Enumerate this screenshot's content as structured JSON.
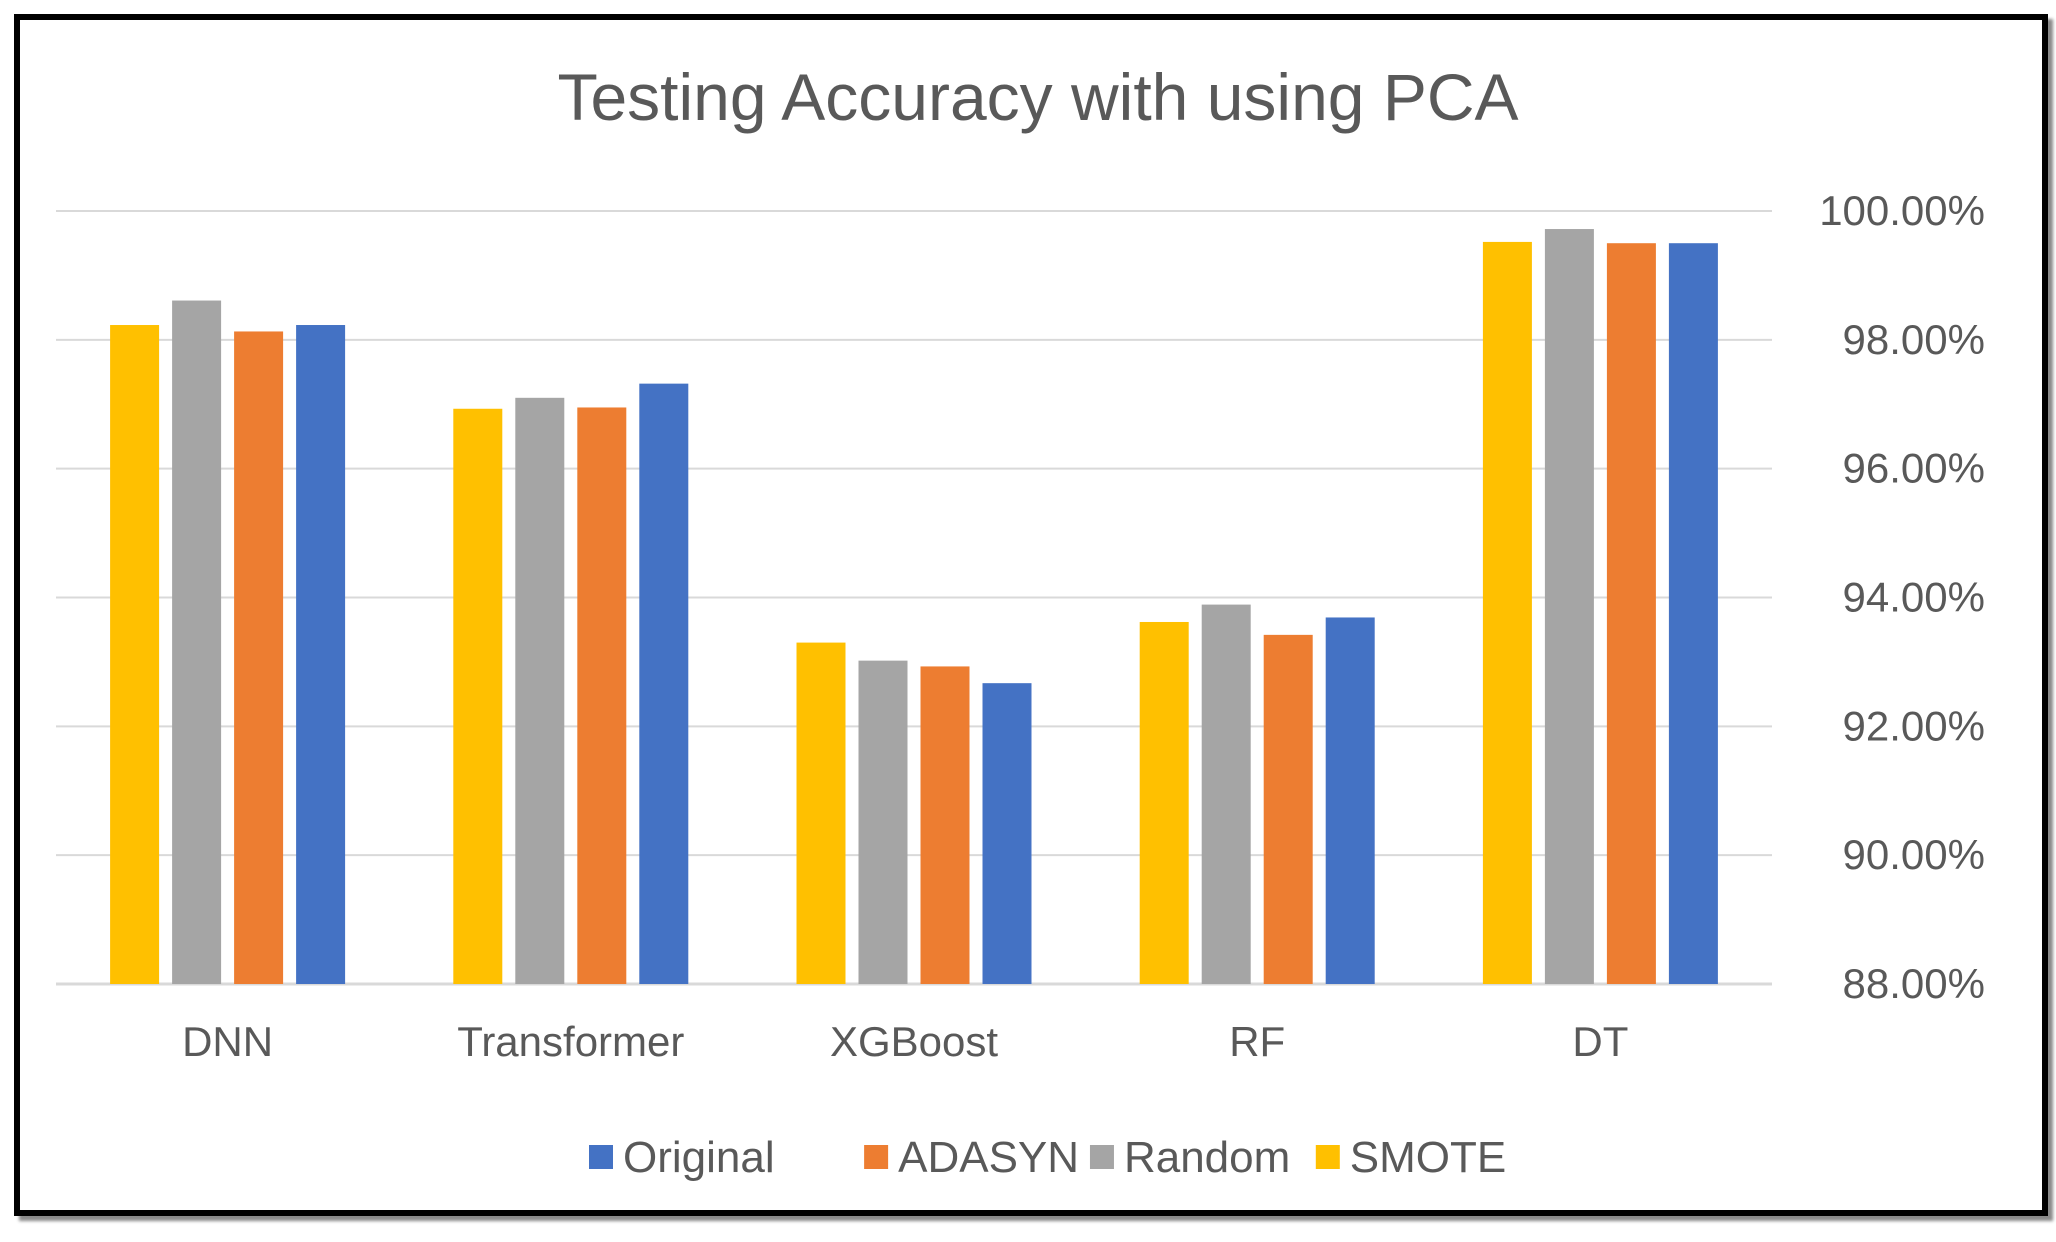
{
  "chart_data": {
    "type": "bar",
    "title": "Testing Accuracy with using PCA",
    "xlabel": "",
    "ylabel": "",
    "categories": [
      "DNN",
      "Transformer",
      "XGBoost",
      "RF",
      "DT"
    ],
    "series": [
      {
        "name": "SMOTE",
        "color": "#FFC000",
        "values": [
          98.23,
          96.93,
          93.3,
          93.62,
          99.52
        ]
      },
      {
        "name": "Random",
        "color": "#A5A5A5",
        "values": [
          98.61,
          97.1,
          93.02,
          93.89,
          99.72
        ]
      },
      {
        "name": "ADASYN",
        "color": "#ED7D31",
        "values": [
          98.13,
          96.95,
          92.93,
          93.42,
          99.5
        ]
      },
      {
        "name": "Original",
        "color": "#4472C4",
        "values": [
          98.23,
          97.32,
          92.67,
          93.69,
          99.5
        ]
      }
    ],
    "legend_order": [
      "Original",
      "ADASYN",
      "Random",
      "SMOTE"
    ],
    "yticks": [
      "88.00%",
      "90.00%",
      "92.00%",
      "94.00%",
      "96.00%",
      "98.00%",
      "100.00%"
    ],
    "ylim": [
      88,
      100
    ],
    "y_axis_position": "right",
    "legend_position": "bottom",
    "grid": true,
    "colors": {
      "gridline": "#D9D9D9",
      "text": "#595959"
    }
  }
}
